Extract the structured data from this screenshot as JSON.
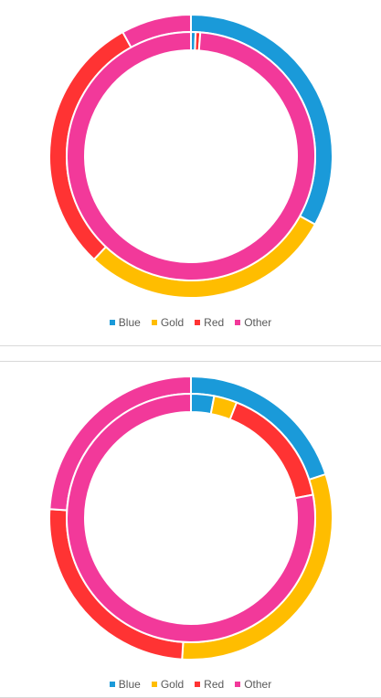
{
  "chart_data": [
    {
      "type": "donut",
      "title": "",
      "legend": [
        "Blue",
        "Gold",
        "Red",
        "Other"
      ],
      "legend_position": "bottom",
      "rings": [
        {
          "ring": "outer",
          "values": [
            33,
            29,
            30,
            8
          ]
        },
        {
          "ring": "inner",
          "values": [
            0.6,
            0,
            0.6,
            98.8
          ]
        }
      ]
    },
    {
      "type": "donut",
      "title": "",
      "legend": [
        "Blue",
        "Gold",
        "Red",
        "Other"
      ],
      "legend_position": "bottom",
      "rings": [
        {
          "ring": "outer",
          "values": [
            20,
            31,
            25,
            24
          ]
        },
        {
          "ring": "inner",
          "values": [
            3,
            3,
            16,
            78
          ]
        }
      ]
    }
  ],
  "colors": {
    "Blue": "#1a9ad9",
    "Gold": "#ffbd00",
    "Red": "#ff3333",
    "Other": "#f2399a"
  }
}
